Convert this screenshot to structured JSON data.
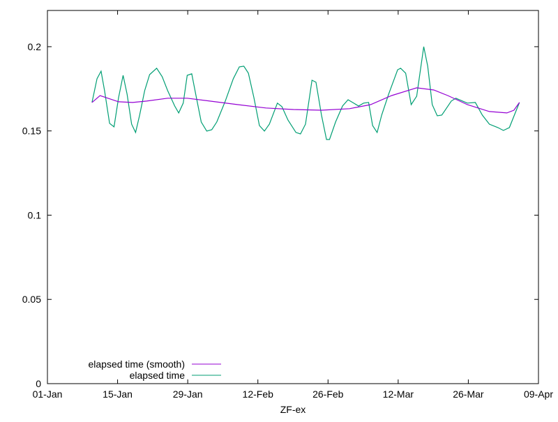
{
  "chart_data": {
    "type": "line",
    "title": "",
    "xlabel": "ZF-ex",
    "ylabel": "",
    "x_unit": "days since 01-Jan",
    "xlim": [
      0,
      98
    ],
    "ylim": [
      0,
      0.2215
    ],
    "x_ticks": [
      {
        "day": 0,
        "label": "01-Jan"
      },
      {
        "day": 14,
        "label": "15-Jan"
      },
      {
        "day": 28,
        "label": "29-Jan"
      },
      {
        "day": 42,
        "label": "12-Feb"
      },
      {
        "day": 56,
        "label": "26-Feb"
      },
      {
        "day": 70,
        "label": "12-Mar"
      },
      {
        "day": 84,
        "label": "26-Mar"
      },
      {
        "day": 98,
        "label": "09-Apr"
      }
    ],
    "y_ticks": [
      {
        "value": 0,
        "label": "0"
      },
      {
        "value": 0.05,
        "label": "0.05"
      },
      {
        "value": 0.1,
        "label": "0.1"
      },
      {
        "value": 0.15,
        "label": "0.15"
      },
      {
        "value": 0.2,
        "label": "0.2"
      }
    ],
    "grid": false,
    "legend_position": "bottom-left",
    "series": [
      {
        "name": "elapsed time (smooth)",
        "color": "#9400d3",
        "x": [
          8.9,
          10.5,
          14.2,
          17.0,
          19.8,
          24.0,
          27.9,
          32.4,
          38.0,
          43.6,
          49.1,
          54.7,
          60.3,
          64.5,
          68.7,
          73.7,
          77.1,
          79.9,
          83.8,
          88.2,
          91.7,
          93.1,
          94.2
        ],
        "y": [
          0.1669,
          0.171,
          0.1673,
          0.1669,
          0.1677,
          0.1694,
          0.1694,
          0.1677,
          0.1656,
          0.1636,
          0.1627,
          0.1623,
          0.1632,
          0.1656,
          0.171,
          0.1756,
          0.1743,
          0.171,
          0.1656,
          0.1615,
          0.1607,
          0.1623,
          0.1669
        ]
      },
      {
        "name": "elapsed time",
        "color": "#009e73",
        "x": [
          8.9,
          9.9,
          10.7,
          11.4,
          12.4,
          13.3,
          14.2,
          15.1,
          15.9,
          16.8,
          17.6,
          18.4,
          19.4,
          20.4,
          21.8,
          22.9,
          24.0,
          25.4,
          26.2,
          27.1,
          27.9,
          28.8,
          29.6,
          30.7,
          31.8,
          32.8,
          33.8,
          35.5,
          37.1,
          38.3,
          39.2,
          40.1,
          41.2,
          42.3,
          43.3,
          44.3,
          45.9,
          46.8,
          48.0,
          49.6,
          50.5,
          51.5,
          52.8,
          53.6,
          54.7,
          55.7,
          56.3,
          57.5,
          58.9,
          60.0,
          62.1,
          63.1,
          64.1,
          64.9,
          65.8,
          66.7,
          68.1,
          69.9,
          70.5,
          71.5,
          72.6,
          73.7,
          75.1,
          75.9,
          76.8,
          77.8,
          78.7,
          80.6,
          81.5,
          83.8,
          85.4,
          86.8,
          88.2,
          89.9,
          91.0,
          92.2,
          94.2
        ],
        "y": [
          0.1669,
          0.181,
          0.1855,
          0.1739,
          0.1545,
          0.1524,
          0.1698,
          0.183,
          0.1718,
          0.154,
          0.1491,
          0.1594,
          0.1739,
          0.1834,
          0.1872,
          0.1822,
          0.1739,
          0.1648,
          0.1607,
          0.1665,
          0.183,
          0.1839,
          0.1718,
          0.1553,
          0.1499,
          0.1507,
          0.1553,
          0.1677,
          0.181,
          0.188,
          0.1884,
          0.1843,
          0.1698,
          0.1532,
          0.1499,
          0.154,
          0.1665,
          0.1644,
          0.1565,
          0.1491,
          0.1482,
          0.154,
          0.1801,
          0.1789,
          0.1594,
          0.1449,
          0.1449,
          0.1553,
          0.1648,
          0.1685,
          0.1648,
          0.1665,
          0.1669,
          0.1532,
          0.1491,
          0.1594,
          0.1718,
          0.1863,
          0.1872,
          0.1843,
          0.1656,
          0.1706,
          0.2,
          0.1884,
          0.1656,
          0.159,
          0.1594,
          0.1677,
          0.1694,
          0.1665,
          0.1669,
          0.1594,
          0.154,
          0.152,
          0.1503,
          0.152,
          0.1669
        ]
      }
    ]
  }
}
